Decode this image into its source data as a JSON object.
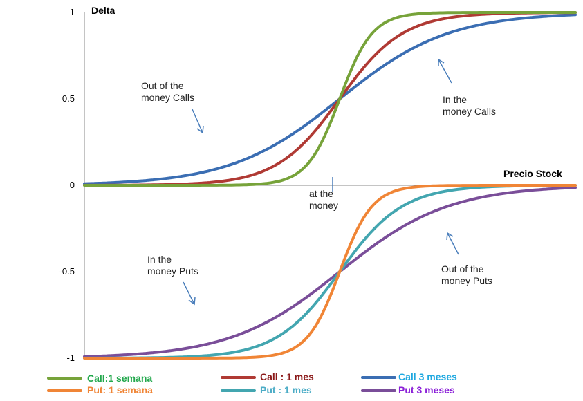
{
  "chart_data": {
    "type": "line",
    "title": "",
    "ylabel": "Delta",
    "xlabel": "Precio Stock",
    "ylim": [
      -1,
      1
    ],
    "yticks": [
      {
        "value": 1,
        "label": "1"
      },
      {
        "value": 0.5,
        "label": "0.5"
      },
      {
        "value": 0,
        "label": "0"
      },
      {
        "value": -0.5,
        "label": "-0.5"
      },
      {
        "value": -1,
        "label": "-1"
      }
    ],
    "xlim": [
      0,
      100
    ],
    "strike": 52,
    "grid": false,
    "series": [
      {
        "key": "call_1w",
        "name": "Call:1 semana",
        "color": "#77A33A",
        "legend_color": "#23A84D",
        "kind": "call",
        "steep": 0.3
      },
      {
        "key": "put_1w",
        "name": "Put: 1 semana",
        "color": "#F08536",
        "legend_color": "#F08536",
        "kind": "put",
        "steep": 0.3
      },
      {
        "key": "call_1m",
        "name": "Call : 1 mes",
        "color": "#B03A34",
        "legend_color": "#8B1A1A",
        "kind": "call",
        "steep": 0.155
      },
      {
        "key": "put_1m",
        "name": "Put : 1 mes",
        "color": "#43A6B0",
        "legend_color": "#4BACC6",
        "kind": "put",
        "steep": 0.155
      },
      {
        "key": "call_3m",
        "name": "Call 3 meses",
        "color": "#3B6EB3",
        "legend_color": "#1EA8E0",
        "kind": "call",
        "steep": 0.09
      },
      {
        "key": "put_3m",
        "name": "Put 3 meses",
        "color": "#7A4E99",
        "legend_color": "#8B20D8",
        "kind": "put",
        "steep": 0.09
      }
    ],
    "annotations": [
      {
        "key": "otm_calls",
        "lines": [
          "Out of the",
          "money Calls"
        ]
      },
      {
        "key": "itm_calls",
        "lines": [
          "In the",
          "money Calls"
        ]
      },
      {
        "key": "atm",
        "lines": [
          "at the",
          "money"
        ]
      },
      {
        "key": "itm_puts",
        "lines": [
          "In the",
          "money Puts"
        ]
      },
      {
        "key": "otm_puts",
        "lines": [
          "Out of the",
          "money Puts"
        ]
      }
    ]
  }
}
